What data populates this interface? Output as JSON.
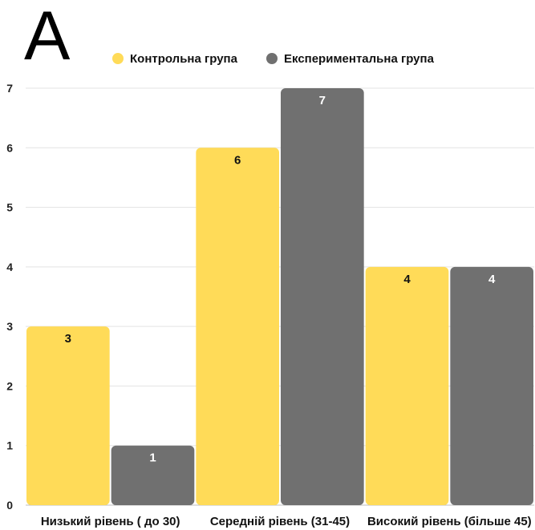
{
  "panel_label": "A",
  "chart_data": {
    "type": "bar",
    "title": "",
    "xlabel": "",
    "ylabel": "",
    "categories": [
      "Низький рівень ( до 30)",
      "Середній рівень (31-45)",
      "Високий рівень (більше 45)"
    ],
    "series": [
      {
        "name": "Контрольна група",
        "values": [
          3,
          6,
          4
        ],
        "color": "#ffdb58"
      },
      {
        "name": "Експериментальна група",
        "values": [
          1,
          7,
          4
        ],
        "color": "#707070"
      }
    ],
    "ylim": [
      0,
      7
    ],
    "yticks": [
      0,
      1,
      2,
      3,
      4,
      5,
      6,
      7
    ],
    "grid": true,
    "legend_position": "top",
    "data_labels": true
  }
}
